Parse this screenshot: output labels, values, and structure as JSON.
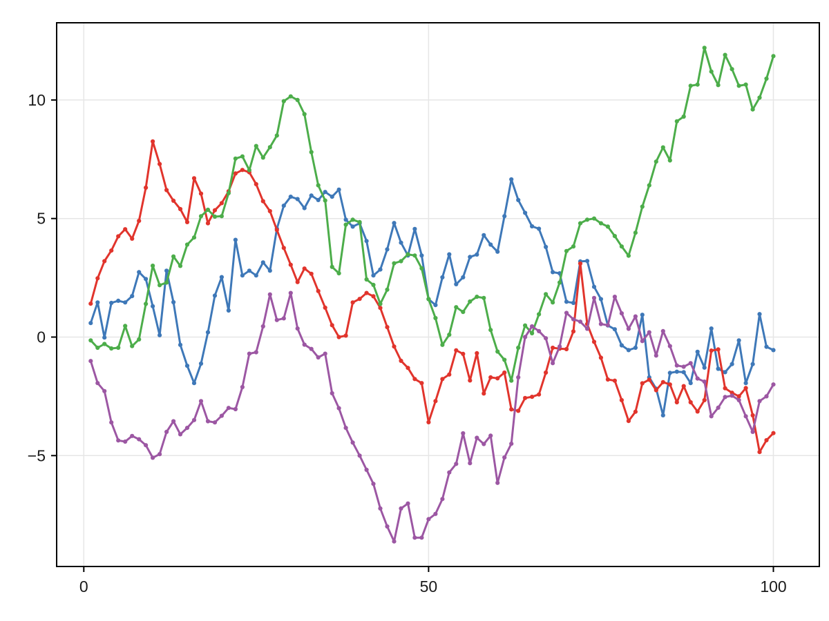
{
  "chart_data": {
    "type": "line",
    "title": "",
    "xlabel": "",
    "ylabel": "",
    "grid": true,
    "legend": "none",
    "x_ticks": [
      0,
      50,
      100
    ],
    "x_tick_labels": [
      "0",
      "50",
      "100"
    ],
    "y_ticks": [
      -5,
      0,
      5,
      10
    ],
    "y_tick_labels": [
      "−5",
      "0",
      "5",
      "10"
    ],
    "xlim": [
      -3.9,
      106.7
    ],
    "ylim": [
      -9.7,
      13.3
    ],
    "x": [
      1,
      2,
      3,
      4,
      5,
      6,
      7,
      8,
      9,
      10,
      11,
      12,
      13,
      14,
      15,
      16,
      17,
      18,
      19,
      20,
      21,
      22,
      23,
      24,
      25,
      26,
      27,
      28,
      29,
      30,
      31,
      32,
      33,
      34,
      35,
      36,
      37,
      38,
      39,
      40,
      41,
      42,
      43,
      44,
      45,
      46,
      47,
      48,
      49,
      50,
      51,
      52,
      53,
      54,
      55,
      56,
      57,
      58,
      59,
      60,
      61,
      62,
      63,
      64,
      65,
      66,
      67,
      68,
      69,
      70,
      71,
      72,
      73,
      74,
      75,
      76,
      77,
      78,
      79,
      80,
      81,
      82,
      83,
      84,
      85,
      86,
      87,
      88,
      89,
      90,
      91,
      92,
      93,
      94,
      95,
      96,
      97,
      98,
      99,
      100
    ],
    "series": [
      {
        "name": "series-blue",
        "color": "#3E78B8",
        "values": [
          0.59,
          1.46,
          -0.02,
          1.44,
          1.53,
          1.46,
          1.73,
          2.74,
          2.45,
          1.3,
          0.08,
          2.8,
          1.47,
          -0.33,
          -1.21,
          -1.94,
          -1.12,
          0.2,
          1.75,
          2.53,
          1.12,
          4.1,
          2.6,
          2.8,
          2.6,
          3.15,
          2.8,
          4.57,
          5.54,
          5.92,
          5.82,
          5.44,
          5.97,
          5.78,
          6.12,
          5.92,
          6.22,
          4.95,
          4.66,
          4.8,
          4.05,
          2.6,
          2.85,
          3.7,
          4.81,
          3.98,
          3.44,
          4.56,
          3.44,
          1.6,
          1.35,
          2.52,
          3.49,
          2.23,
          2.52,
          3.38,
          3.48,
          4.3,
          3.9,
          3.6,
          5.1,
          6.65,
          5.78,
          5.24,
          4.67,
          4.57,
          3.8,
          2.74,
          2.69,
          1.49,
          1.44,
          3.19,
          3.21,
          2.12,
          1.6,
          0.49,
          0.33,
          -0.35,
          -0.55,
          -0.45,
          0.94,
          -1.7,
          -2.18,
          -3.3,
          -1.51,
          -1.46,
          -1.48,
          -1.94,
          -0.62,
          -1.29,
          0.36,
          -1.34,
          -1.48,
          -1.14,
          -0.14,
          -1.94,
          -1.14,
          0.97,
          -0.41,
          -0.55
        ]
      },
      {
        "name": "series-red",
        "color": "#E1342C",
        "values": [
          1.41,
          2.48,
          3.2,
          3.65,
          4.25,
          4.55,
          4.15,
          4.9,
          6.3,
          8.25,
          7.3,
          6.2,
          5.75,
          5.4,
          4.85,
          6.7,
          6.05,
          4.8,
          5.35,
          5.65,
          6.15,
          6.9,
          7.05,
          6.95,
          6.45,
          5.73,
          5.31,
          4.52,
          3.76,
          3.05,
          2.32,
          2.89,
          2.67,
          1.94,
          1.24,
          0.5,
          0.0,
          0.06,
          1.46,
          1.61,
          1.86,
          1.72,
          1.23,
          0.42,
          -0.4,
          -1.0,
          -1.3,
          -1.77,
          -1.94,
          -3.59,
          -2.7,
          -1.77,
          -1.58,
          -0.56,
          -0.71,
          -1.83,
          -0.68,
          -2.38,
          -1.7,
          -1.74,
          -1.5,
          -3.05,
          -3.11,
          -2.57,
          -2.52,
          -2.42,
          -1.5,
          -0.45,
          -0.49,
          -0.51,
          0.24,
          3.1,
          0.55,
          -0.2,
          -0.87,
          -1.79,
          -1.84,
          -2.66,
          -3.54,
          -3.15,
          -1.95,
          -1.8,
          -2.24,
          -1.9,
          -2.0,
          -2.75,
          -2.07,
          -2.75,
          -3.14,
          -2.66,
          -0.57,
          -0.52,
          -2.16,
          -2.35,
          -2.5,
          -2.15,
          -3.3,
          -4.85,
          -4.35,
          -4.05
        ]
      },
      {
        "name": "series-green",
        "color": "#4CAD4A",
        "values": [
          -0.14,
          -0.45,
          -0.29,
          -0.48,
          -0.45,
          0.47,
          -0.38,
          -0.1,
          1.4,
          3.01,
          2.19,
          2.3,
          3.4,
          3.0,
          3.9,
          4.2,
          5.1,
          5.37,
          5.08,
          5.1,
          6.07,
          7.53,
          7.62,
          7.04,
          8.06,
          7.57,
          8.01,
          8.5,
          9.95,
          10.15,
          10.0,
          9.4,
          7.8,
          6.4,
          5.76,
          2.96,
          2.69,
          4.74,
          4.95,
          4.85,
          2.43,
          2.2,
          1.4,
          2.0,
          3.11,
          3.2,
          3.49,
          3.44,
          2.9,
          1.6,
          0.8,
          -0.33,
          0.1,
          1.26,
          1.06,
          1.5,
          1.7,
          1.65,
          0.3,
          -0.61,
          -0.96,
          -1.84,
          -0.45,
          0.49,
          0.16,
          0.96,
          1.81,
          1.46,
          2.3,
          3.63,
          3.82,
          4.8,
          4.95,
          5.0,
          4.8,
          4.66,
          4.26,
          3.82,
          3.43,
          4.4,
          5.5,
          6.4,
          7.4,
          8.0,
          7.45,
          9.1,
          9.3,
          10.6,
          10.65,
          12.2,
          11.2,
          10.63,
          11.9,
          11.3,
          10.6,
          10.65,
          9.6,
          10.1,
          10.9,
          11.85
        ]
      },
      {
        "name": "series-purple",
        "color": "#9C57A3",
        "values": [
          -1.01,
          -1.94,
          -2.28,
          -3.6,
          -4.36,
          -4.41,
          -4.17,
          -4.31,
          -4.56,
          -5.09,
          -4.94,
          -4.0,
          -3.55,
          -4.1,
          -3.83,
          -3.5,
          -2.7,
          -3.55,
          -3.6,
          -3.32,
          -2.99,
          -3.04,
          -2.11,
          -0.7,
          -0.64,
          0.45,
          1.8,
          0.72,
          0.79,
          1.86,
          0.36,
          -0.32,
          -0.5,
          -0.86,
          -0.7,
          -2.37,
          -3.0,
          -3.83,
          -4.45,
          -5.0,
          -5.6,
          -6.19,
          -7.23,
          -7.99,
          -8.62,
          -7.23,
          -7.02,
          -8.46,
          -8.46,
          -7.68,
          -7.46,
          -6.83,
          -5.71,
          -5.35,
          -4.06,
          -5.32,
          -4.25,
          -4.51,
          -4.16,
          -6.15,
          -5.08,
          -4.5,
          -1.7,
          0.0,
          0.45,
          0.25,
          -0.05,
          -1.1,
          -0.4,
          1.02,
          0.75,
          0.65,
          0.35,
          1.65,
          0.55,
          0.5,
          1.7,
          1.0,
          0.35,
          0.87,
          -0.17,
          0.2,
          -0.78,
          0.25,
          -0.38,
          -1.2,
          -1.25,
          -1.1,
          -1.75,
          -1.88,
          -3.34,
          -2.98,
          -2.53,
          -2.47,
          -2.66,
          -3.34,
          -4.0,
          -2.7,
          -2.5,
          -2.0
        ]
      }
    ],
    "style": {
      "background": "#ffffff",
      "grid_color": "#e6e6e6",
      "spine_color": "#000000",
      "tick_label_color": "#1a1a1a",
      "marker": "circle"
    }
  }
}
